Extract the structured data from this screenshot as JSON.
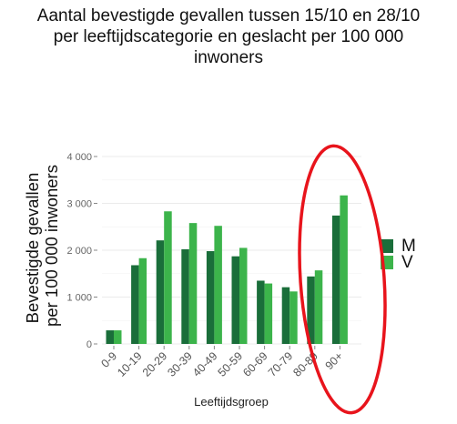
{
  "chart_data": {
    "type": "bar",
    "title_lines": [
      "Aantal bevestigde gevallen tussen 15/10 en 28/10",
      "per leeftijdscategorie en geslacht per 100 000",
      "inwoners"
    ],
    "xlabel": "Leeftijdsgroep",
    "ylabel_lines": [
      "Bevestigde gevallen",
      "per 100 000 inwoners"
    ],
    "categories": [
      "0-9",
      "10-19",
      "20-29",
      "30-39",
      "40-49",
      "50-59",
      "60-69",
      "70-79",
      "80-89",
      "90+"
    ],
    "series": [
      {
        "name": "M",
        "color": "#1a6e3a",
        "values": [
          290,
          1680,
          2210,
          2020,
          1980,
          1870,
          1350,
          1210,
          1440,
          2740
        ]
      },
      {
        "name": "V",
        "color": "#3cb44b",
        "values": [
          290,
          1830,
          2830,
          2580,
          2520,
          2050,
          1290,
          1120,
          1570,
          3170
        ]
      }
    ],
    "ylim": [
      0,
      4000
    ],
    "yticks": [
      0,
      1000,
      2000,
      3000,
      4000
    ],
    "ytick_labels": [
      "0",
      "1 000",
      "2 000",
      "3 000",
      "4 000"
    ],
    "grid": true,
    "legend_position": "right",
    "annotation": {
      "shape": "ellipse",
      "color": "#e8141c",
      "highlights": [
        "80-89",
        "90+"
      ]
    }
  }
}
